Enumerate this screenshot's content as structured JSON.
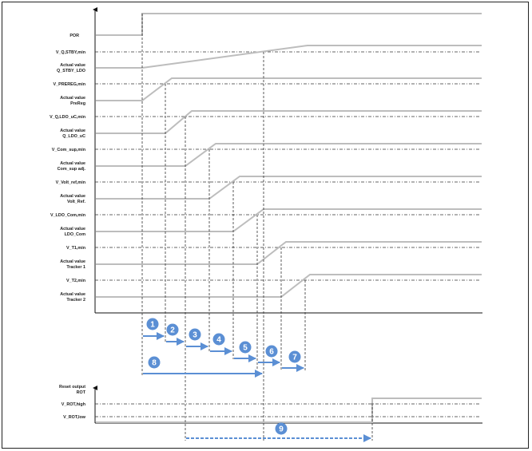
{
  "top_labels": {
    "por": "POR",
    "v_stby_min": "V_Q,STBY,min",
    "q_stby_ldo": [
      "Actual value",
      "Q_STBY_LDO"
    ],
    "v_prereg": "V_PREREG,min",
    "prereg": [
      "Actual value",
      "PreReg"
    ],
    "v_q_ldo_uc": "V_Q,LDO_uC,min",
    "q_ldo_uc": [
      "Actual value",
      "Q_LDO_uC"
    ],
    "v_com_sup": "V_Com_sup,min",
    "com_sup": [
      "Actual value",
      "Com_sup adj."
    ],
    "v_volt_ref": "V_Volt_ref,min",
    "volt_ref": [
      "Actual value",
      "Volt_Ref."
    ],
    "v_ldo_com": "V_LDO_Com,min",
    "ldo_com": [
      "Actual value",
      "LDO_Com"
    ],
    "v_track1": "V_T1,min",
    "tracker1": [
      "Actual value",
      "Tracker 1"
    ],
    "v_track2": "V_T2,min",
    "tracker2": [
      "Actual value",
      "Tracker 2"
    ]
  },
  "bottom_labels": {
    "reset_output": [
      "Reset output",
      "ROT"
    ],
    "v_rot_high": "V_ROT,high",
    "v_rot_low": "V_ROT,low"
  },
  "step_markers": [
    "1",
    "2",
    "3",
    "4",
    "5",
    "6",
    "7",
    "8",
    "9"
  ],
  "colors": {
    "signal": "#bdbdbd",
    "marker": "#5b8fd4",
    "axis": "#111111",
    "threshold": "#333333"
  }
}
